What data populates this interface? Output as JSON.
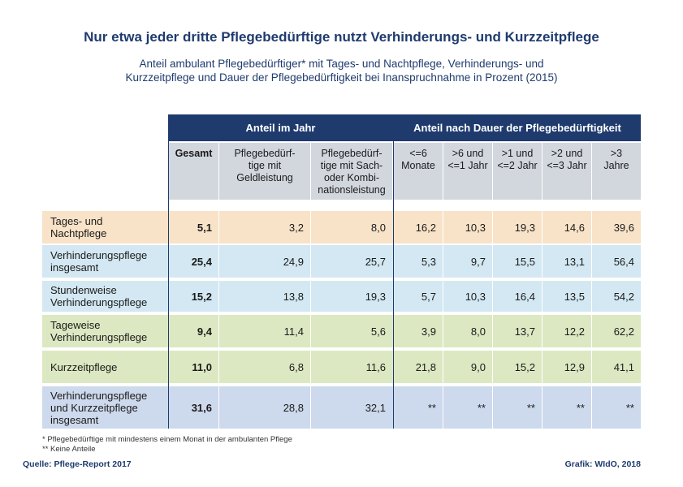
{
  "title": "Nur etwa jeder dritte Pflegebedürftige nutzt Verhinderungs- und Kurzzeitpflege",
  "subtitle": {
    "line1": "Anteil ambulant Pflegebedürftiger* mit Tages- und Nachtpflege, Verhinderungs- und",
    "line2": "Kurzzeitpflege und Dauer der Pflegebedürftigkeit bei Inanspruchnahme in Prozent (2015)"
  },
  "group_headers": {
    "year": "Anteil im Jahr",
    "duration": "Anteil nach Dauer der Pflegebedürftigkeit"
  },
  "columns": [
    {
      "lines": [
        "Gesamt"
      ]
    },
    {
      "lines": [
        "Pflegebedürf-",
        "tige mit",
        "Geldleistung"
      ]
    },
    {
      "lines": [
        "Pflegebedürf-",
        "tige mit Sach-",
        "oder Kombi-",
        "nationsleistung"
      ]
    },
    {
      "lines": [
        "<=6",
        "Monate"
      ]
    },
    {
      "lines": [
        ">6 und",
        "<=1 Jahr"
      ]
    },
    {
      "lines": [
        ">1 und",
        "<=2 Jahr"
      ]
    },
    {
      "lines": [
        ">2 und",
        "<=3 Jahr"
      ]
    },
    {
      "lines": [
        ">3",
        "Jahre"
      ]
    }
  ],
  "rows": [
    {
      "label": [
        "Tages- und",
        "Nachtpflege"
      ],
      "color": "#f8e3c8",
      "values": [
        "5,1",
        "3,2",
        "8,0",
        "16,2",
        "10,3",
        "19,3",
        "14,6",
        "39,6"
      ]
    },
    {
      "label": [
        "Verhinderungspflege",
        "insgesamt"
      ],
      "color": "#d3e8f2",
      "values": [
        "25,4",
        "24,9",
        "25,7",
        "5,3",
        "9,7",
        "15,5",
        "13,1",
        "56,4"
      ]
    },
    {
      "label": [
        "Stundenweise",
        "Verhinderungspflege"
      ],
      "color": "#d3e8f2",
      "values": [
        "15,2",
        "13,8",
        "19,3",
        "5,7",
        "10,3",
        "16,4",
        "13,5",
        "54,2"
      ]
    },
    {
      "label": [
        "Tageweise",
        "Verhinderungspflege"
      ],
      "color": "#dce8c2",
      "values": [
        "9,4",
        "11,4",
        "5,6",
        "3,9",
        "8,0",
        "13,7",
        "12,2",
        "62,2"
      ]
    },
    {
      "label": [
        "Kurzzeitpflege"
      ],
      "color": "#dce8c2",
      "values": [
        "11,0",
        "6,8",
        "11,6",
        "21,8",
        "9,0",
        "15,2",
        "12,9",
        "41,1"
      ]
    },
    {
      "label": [
        "Verhinderungspflege",
        "und Kurzzeitpflege",
        "insgesamt"
      ],
      "color": "#cdd9ec",
      "values": [
        "31,6",
        "28,8",
        "32,1",
        "**",
        "**",
        "**",
        "**",
        "**"
      ]
    }
  ],
  "footnotes": [
    "* Pflegebedürftige mit mindestens einem Monat in der ambulanten Pflege",
    "** Keine Anteile"
  ],
  "source_left": "Quelle: Pflege-Report 2017",
  "source_right": "Grafik: WIdO, 2018"
}
